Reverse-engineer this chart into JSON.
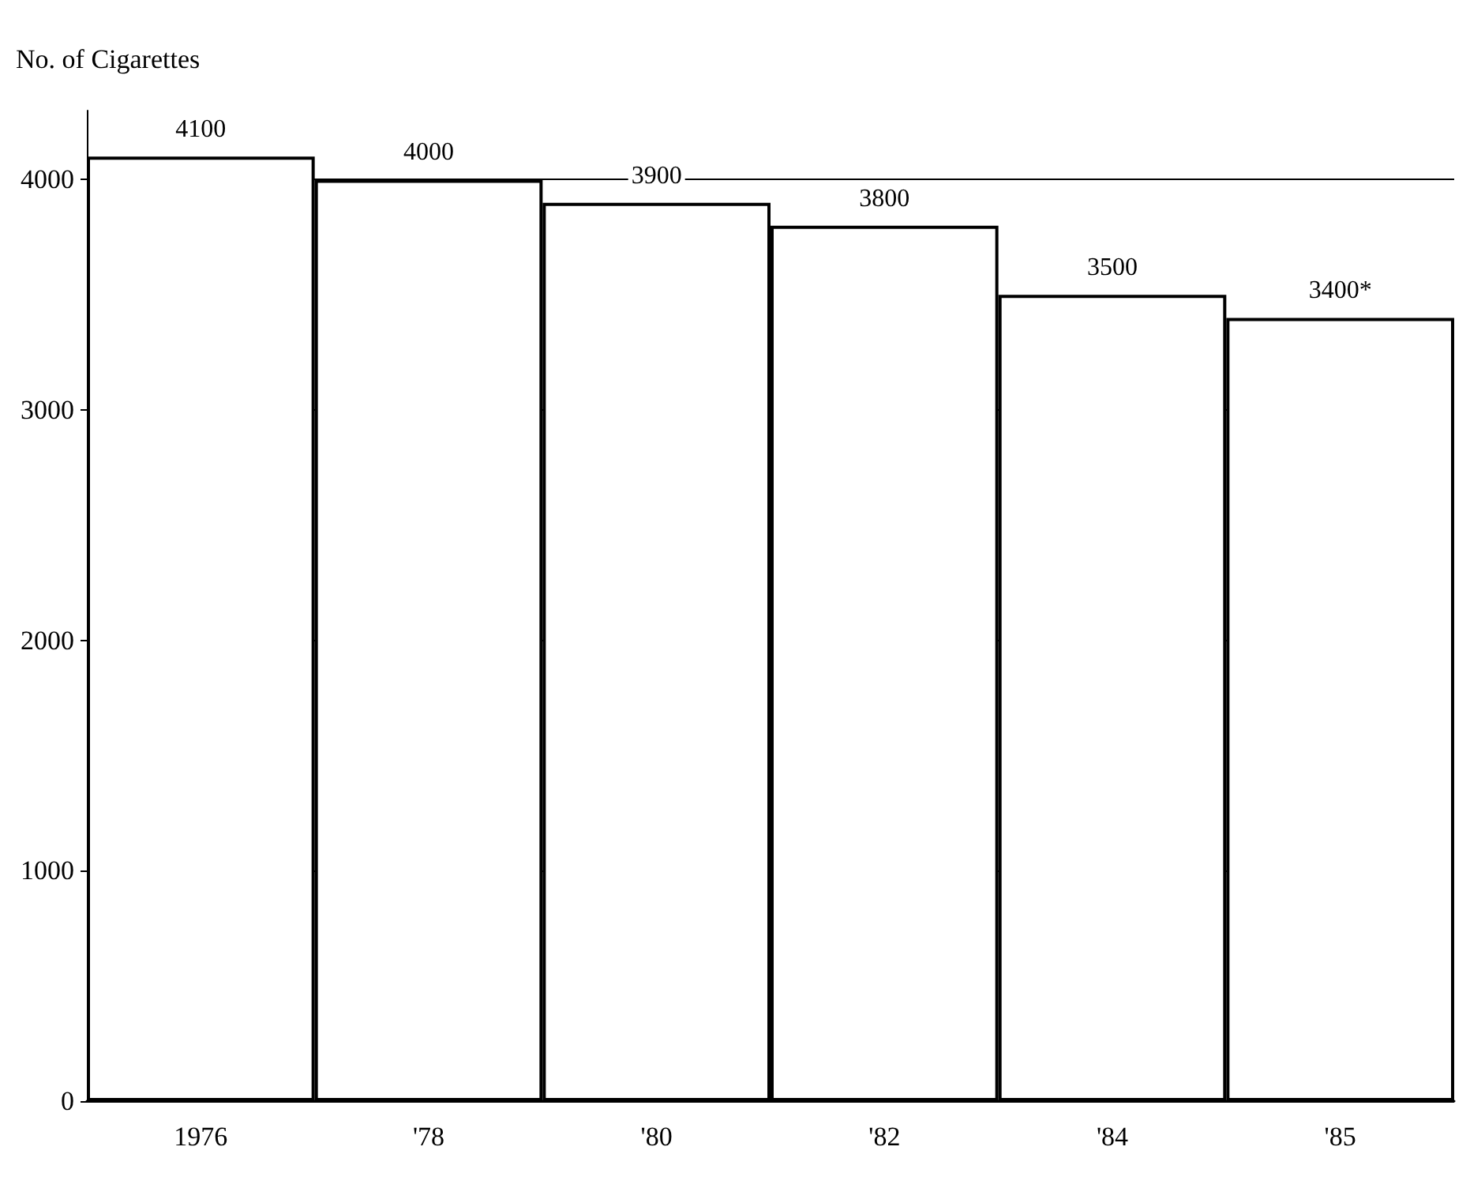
{
  "chart_data": {
    "type": "bar",
    "ylabel": "No. of Cigarettes",
    "categories": [
      "1976",
      "'78",
      "'80",
      "'82",
      "'84",
      "'85"
    ],
    "values": [
      4100,
      4000,
      3900,
      3800,
      3500,
      3400
    ],
    "value_labels": [
      "4100",
      "4000",
      "3900",
      "3800",
      "3500",
      "3400*"
    ],
    "color": "#ffffff",
    "ylim": [
      0,
      4300
    ],
    "yticks": [
      0,
      1000,
      2000,
      3000,
      4000
    ],
    "grid": "y"
  }
}
